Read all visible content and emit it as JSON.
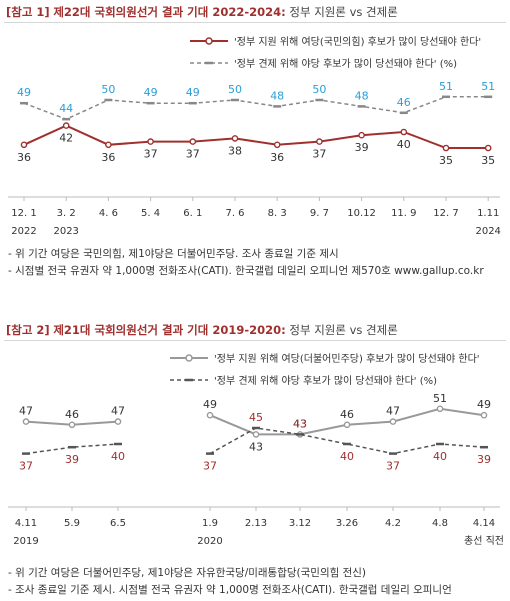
{
  "chart_data": [
    {
      "type": "line",
      "tag": "[참고 1]",
      "title": "제22대 국회의원선거 결과 기대 2022-2024:",
      "subtitle": "정부 지원론 vs 견제론",
      "categories": [
        "12. 1",
        "3. 2",
        "4. 6",
        "5. 4",
        "6. 1",
        "7. 6",
        "8. 3",
        "9. 7",
        "10.12",
        "11. 9",
        "12. 7",
        "1.11"
      ],
      "year_labels": [
        {
          "index": 0,
          "label": "2022"
        },
        {
          "index": 1,
          "label": "2023"
        },
        {
          "index": 11,
          "label": "2024"
        }
      ],
      "series": [
        {
          "name": "'정부 지원 위해 여당(국민의힘) 후보가 많이 당선돼야 한다'",
          "values": [
            36,
            42,
            36,
            37,
            37,
            38,
            36,
            37,
            39,
            40,
            35,
            35
          ],
          "color": "#a0302e",
          "label_color": "#333333"
        },
        {
          "name": "'정부 견제 위해 야당 후보가 많이 당선돼야 한다'",
          "unit": "(%)",
          "values": [
            49,
            44,
            50,
            49,
            49,
            50,
            48,
            50,
            48,
            46,
            51,
            51
          ],
          "color": "#888888",
          "label_color": "#2a9fd6"
        }
      ],
      "notes": [
        "- 위 기간 여당은 국민의힘, 제1야당은 더불어민주당. 조사 종료일 기준 제시",
        "- 시점별 전국 유권자 약 1,000명 전화조사(CATI). 한국갤럽 데일리 오피니언 제570호 www.gallup.co.kr"
      ]
    },
    {
      "type": "line",
      "tag": "[참고 2]",
      "title": "제21대 국회의원선거 결과 기대 2019-2020:",
      "subtitle": "정부 지원론 vs 견제론",
      "categories": [
        "4.11",
        "5.9",
        "6.5",
        "1.9",
        "2.13",
        "3.12",
        "3.26",
        "4.2",
        "4.8",
        "4.14"
      ],
      "year_labels": [
        {
          "index": 0,
          "label": "2019"
        },
        {
          "index": 3,
          "label": "2020"
        },
        {
          "index": 9,
          "label": "총선 직전"
        }
      ],
      "series": [
        {
          "name": "'정부 지원 위해 여당(더불어민주당) 후보가 많이 당선돼야 한다'",
          "values": [
            47,
            46,
            47,
            49,
            43,
            43,
            46,
            47,
            51,
            49
          ],
          "color": "#999999",
          "label_color": "#333333"
        },
        {
          "name": "'정부 견제 위해 야당 후보가 많이 당선돼야 한다'",
          "unit": "(%)",
          "values": [
            37,
            39,
            40,
            37,
            45,
            43,
            40,
            37,
            40,
            39
          ],
          "color": "#555555",
          "label_color": "#a0302e"
        }
      ],
      "notes": [
        "- 위 기간 여당은 더불어민주당, 제1야당은 자유한국당/미래통합당(국민의힘 전신)",
        "- 조사 종료일 기준 제시. 시점별 전국 유권자 약 1,000명 전화조사(CATI). 한국갤럽 데일리 오피니언"
      ]
    }
  ]
}
